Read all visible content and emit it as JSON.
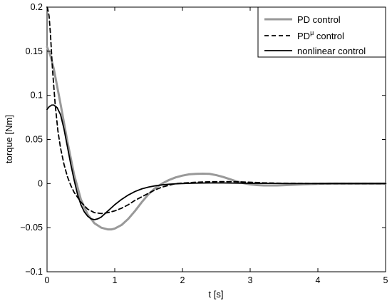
{
  "chart_data": {
    "type": "line",
    "xlabel": "t  [s]",
    "ylabel": "torque  [Nm]",
    "xlim": [
      0,
      5
    ],
    "ylim": [
      -0.1,
      0.2
    ],
    "xticks": [
      0,
      1,
      2,
      3,
      4,
      5
    ],
    "xtick_labels": [
      "0",
      "1",
      "2",
      "3",
      "4",
      "5"
    ],
    "yticks": [
      -0.1,
      -0.05,
      0,
      0.05,
      0.1,
      0.15,
      0.2
    ],
    "ytick_labels": [
      "−0.1",
      "−0.05",
      "0",
      "0.05",
      "0.1",
      "0.15",
      "0.2"
    ],
    "grid": false,
    "legend_position": "top-right",
    "series": [
      {
        "name": "PD control",
        "name_main": "PD control",
        "name_sup": "",
        "name_rest": "",
        "color": "#999999",
        "style": "solid",
        "x": [
          0,
          0.05,
          0.1,
          0.2,
          0.3,
          0.4,
          0.5,
          0.6,
          0.7,
          0.8,
          0.9,
          0.95,
          1.0,
          1.1,
          1.2,
          1.3,
          1.4,
          1.5,
          1.6,
          1.7,
          1.8,
          1.9,
          2.0,
          2.1,
          2.2,
          2.3,
          2.4,
          2.5,
          2.6,
          2.7,
          2.8,
          2.9,
          3.0,
          3.1,
          3.2,
          3.4,
          3.6,
          3.8,
          4.0,
          4.2,
          4.5,
          5.0
        ],
        "y": [
          0.155,
          0.145,
          0.13,
          0.09,
          0.048,
          0.01,
          -0.018,
          -0.035,
          -0.045,
          -0.05,
          -0.052,
          -0.052,
          -0.051,
          -0.047,
          -0.04,
          -0.031,
          -0.021,
          -0.012,
          -0.005,
          0.0,
          0.004,
          0.007,
          0.009,
          0.0105,
          0.011,
          0.0112,
          0.011,
          0.0095,
          0.0075,
          0.005,
          0.0025,
          0.0005,
          -0.001,
          -0.0018,
          -0.0022,
          -0.0022,
          -0.0015,
          -0.0008,
          -0.0003,
          0.0,
          0.0,
          0.0
        ]
      },
      {
        "name": "PD^μ control",
        "name_main": "PD",
        "name_sup": "μ",
        "name_rest": " control",
        "color": "#000000",
        "style": "dashed",
        "x": [
          0,
          0.01,
          0.03,
          0.05,
          0.08,
          0.12,
          0.16,
          0.2,
          0.25,
          0.3,
          0.35,
          0.4,
          0.5,
          0.6,
          0.7,
          0.8,
          0.9,
          1.0,
          1.1,
          1.2,
          1.3,
          1.4,
          1.5,
          1.6,
          1.7,
          1.8,
          1.9,
          2.0,
          2.2,
          2.4,
          2.6,
          2.8,
          3.0,
          3.2,
          3.5,
          4.0,
          4.5,
          5.0
        ],
        "y": [
          0.2,
          0.198,
          0.19,
          0.17,
          0.13,
          0.09,
          0.06,
          0.04,
          0.022,
          0.008,
          -0.002,
          -0.01,
          -0.021,
          -0.029,
          -0.033,
          -0.034,
          -0.033,
          -0.031,
          -0.028,
          -0.024,
          -0.019,
          -0.015,
          -0.011,
          -0.007,
          -0.004,
          -0.002,
          0.0,
          0.0005,
          0.0015,
          0.002,
          0.0022,
          0.002,
          0.0015,
          0.0008,
          0.0003,
          0.0,
          0.0,
          0.0
        ]
      },
      {
        "name": "nonlinear control",
        "name_main": "nonlinear control",
        "name_sup": "",
        "name_rest": "",
        "color": "#000000",
        "style": "solid",
        "x": [
          0,
          0.03,
          0.07,
          0.1,
          0.15,
          0.2,
          0.25,
          0.3,
          0.35,
          0.4,
          0.45,
          0.5,
          0.55,
          0.6,
          0.65,
          0.7,
          0.75,
          0.8,
          0.9,
          1.0,
          1.1,
          1.2,
          1.3,
          1.4,
          1.5,
          1.6,
          1.7,
          1.8,
          1.9,
          2.0,
          2.1,
          2.2,
          2.4,
          2.6,
          2.8,
          3.0,
          3.3,
          3.6,
          4.0,
          4.5,
          5.0
        ],
        "y": [
          0.084,
          0.087,
          0.089,
          0.089,
          0.086,
          0.078,
          0.062,
          0.042,
          0.022,
          0.004,
          -0.012,
          -0.024,
          -0.032,
          -0.037,
          -0.04,
          -0.041,
          -0.04,
          -0.038,
          -0.031,
          -0.024,
          -0.018,
          -0.013,
          -0.009,
          -0.006,
          -0.004,
          -0.0025,
          -0.0015,
          -0.0008,
          -0.0003,
          0.0,
          0.0003,
          0.0005,
          0.0007,
          0.0007,
          0.0005,
          0.0003,
          0.0002,
          0.0,
          0.0,
          0.0,
          0.0
        ]
      }
    ]
  }
}
